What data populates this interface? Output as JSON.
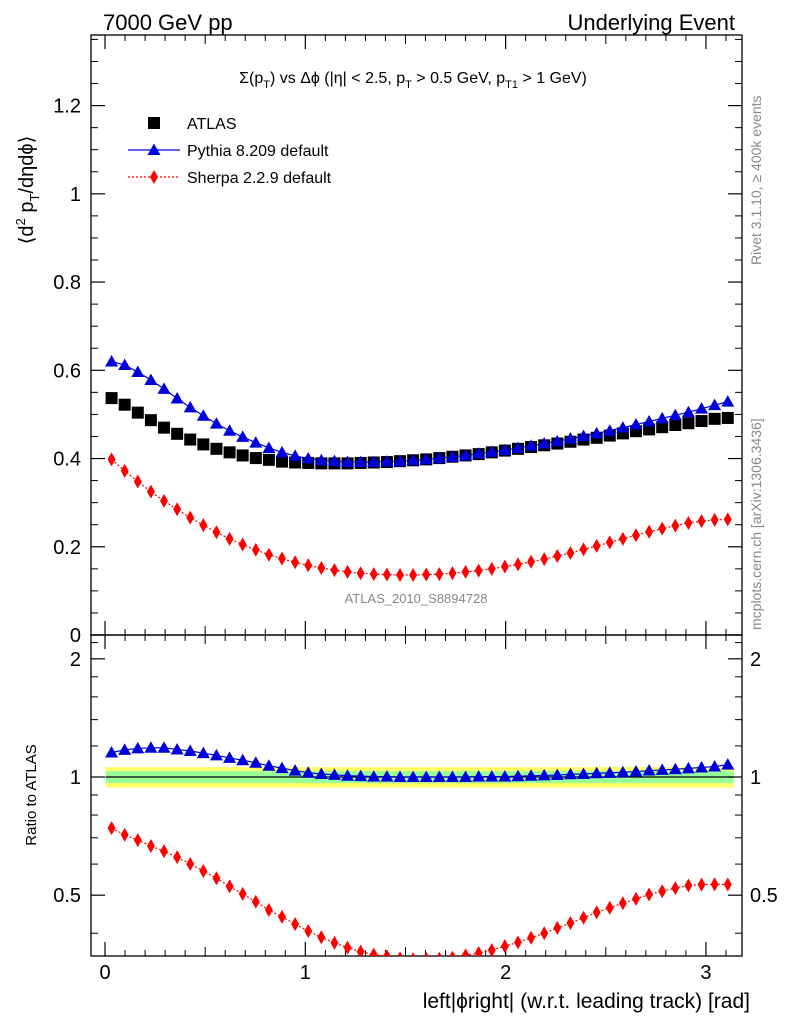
{
  "header": {
    "left": "7000 GeV pp",
    "right": "Underlying Event"
  },
  "chart_data": {
    "type": "scatter",
    "title": "Σ(p_T) vs Δϕ (|η| < 2.5, p_T > 0.5 GeV, p_T1 > 1 GeV)",
    "title_parts": {
      "sigma": "Σ(p",
      "t1": "T",
      "vs": ") vs Δϕ (|η| < 2.5, p",
      "t2": "T",
      "gev": " > 0.5 GeV, p",
      "t3": "T1",
      "end": " > 1 GeV)"
    },
    "ylabel_parts": {
      "a": "⟨d",
      "b": "2",
      "c": " p",
      "d": "T",
      "e": "/dηdϕ⟩"
    },
    "xlabel": "left|ϕright| (w.r.t. leading track) [rad]",
    "ratio_ylabel": "Ratio to ATLAS",
    "analysis_id": "ATLAS_2010_S8894728",
    "side_text_1": "Rivet 3.1.10, ≥ 400k events",
    "side_text_2": "mcplots.cern.ch [arXiv:1306.3436]",
    "xlim": [
      -0.07,
      3.18
    ],
    "ylim": [
      0,
      1.36
    ],
    "ratio_ylim": [
      0.35,
      2.3
    ],
    "x_ticks": [
      "0",
      "1",
      "2",
      "3"
    ],
    "y_ticks": [
      "0",
      "0.2",
      "0.4",
      "0.6",
      "0.8",
      "1",
      "1.2"
    ],
    "ratio_ticks": [
      "0.5",
      "1",
      "2"
    ],
    "x": [
      0.0327,
      0.0982,
      0.1636,
      0.2291,
      0.2945,
      0.36,
      0.4254,
      0.4909,
      0.5563,
      0.6218,
      0.6872,
      0.7527,
      0.8181,
      0.8836,
      0.949,
      1.0145,
      1.0799,
      1.1454,
      1.2108,
      1.2763,
      1.3417,
      1.4072,
      1.4726,
      1.5381,
      1.6035,
      1.669,
      1.7344,
      1.7999,
      1.8653,
      1.9308,
      1.9962,
      2.0617,
      2.1271,
      2.1926,
      2.258,
      2.3235,
      2.3889,
      2.4544,
      2.5198,
      2.5853,
      2.6507,
      2.7162,
      2.7816,
      2.8471,
      2.9125,
      2.978,
      3.0434,
      3.1089
    ],
    "series": [
      {
        "name": "ATLAS",
        "color": "#000000",
        "marker": "square",
        "values": [
          0.537,
          0.522,
          0.504,
          0.487,
          0.47,
          0.456,
          0.443,
          0.432,
          0.422,
          0.414,
          0.407,
          0.401,
          0.397,
          0.393,
          0.391,
          0.39,
          0.389,
          0.389,
          0.389,
          0.39,
          0.391,
          0.392,
          0.394,
          0.396,
          0.398,
          0.401,
          0.404,
          0.407,
          0.41,
          0.414,
          0.418,
          0.422,
          0.426,
          0.43,
          0.434,
          0.438,
          0.443,
          0.447,
          0.452,
          0.457,
          0.462,
          0.466,
          0.471,
          0.476,
          0.48,
          0.485,
          0.49,
          0.492
        ]
      },
      {
        "name": "Pythia 8.209 default",
        "color": "#0000dd",
        "marker": "triangle",
        "values": [
          0.62,
          0.612,
          0.596,
          0.578,
          0.558,
          0.536,
          0.516,
          0.497,
          0.479,
          0.463,
          0.449,
          0.436,
          0.424,
          0.414,
          0.406,
          0.4,
          0.396,
          0.394,
          0.392,
          0.392,
          0.392,
          0.393,
          0.394,
          0.396,
          0.398,
          0.401,
          0.404,
          0.407,
          0.411,
          0.415,
          0.419,
          0.424,
          0.429,
          0.434,
          0.439,
          0.445,
          0.451,
          0.457,
          0.463,
          0.47,
          0.477,
          0.484,
          0.491,
          0.498,
          0.505,
          0.513,
          0.521,
          0.529
        ]
      },
      {
        "name": "Sherpa 2.2.9 default",
        "color": "#ff0000",
        "marker": "diamond",
        "values": [
          0.398,
          0.372,
          0.348,
          0.325,
          0.304,
          0.285,
          0.266,
          0.249,
          0.233,
          0.218,
          0.205,
          0.193,
          0.182,
          0.173,
          0.165,
          0.158,
          0.152,
          0.147,
          0.143,
          0.14,
          0.138,
          0.137,
          0.136,
          0.136,
          0.137,
          0.138,
          0.14,
          0.143,
          0.146,
          0.15,
          0.155,
          0.16,
          0.166,
          0.172,
          0.179,
          0.186,
          0.194,
          0.202,
          0.21,
          0.218,
          0.226,
          0.234,
          0.241,
          0.248,
          0.254,
          0.258,
          0.261,
          0.262
        ]
      }
    ],
    "ratio_bands": [
      {
        "level": "outer",
        "color": "#ffff66",
        "lo": 0.94,
        "hi": 1.06
      },
      {
        "level": "inner",
        "color": "#99ff99",
        "lo": 0.965,
        "hi": 1.035
      }
    ],
    "legend_position": "top-left",
    "grid": false
  }
}
